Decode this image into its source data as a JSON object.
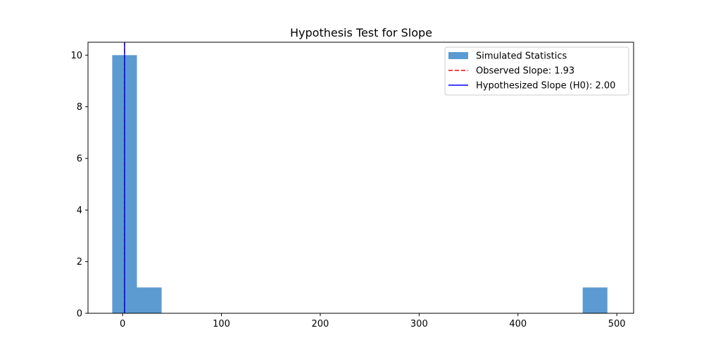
{
  "chart_data": {
    "type": "bar",
    "title": "Hypothesis Test for Slope",
    "xlabel": "",
    "ylabel": "",
    "xlim": [
      -35,
      517
    ],
    "ylim": [
      0,
      10.5
    ],
    "xticks": [
      0,
      100,
      200,
      300,
      400,
      500
    ],
    "yticks": [
      0,
      2,
      4,
      6,
      8,
      10
    ],
    "grid": false,
    "legend_position": "top-right",
    "histogram": {
      "name": "Simulated Statistics",
      "color": "#5b9bd1",
      "bins": [
        {
          "x0": -10.5,
          "x1": 14.5,
          "count": 10
        },
        {
          "x0": 14.5,
          "x1": 39.5,
          "count": 1
        },
        {
          "x0": 465.5,
          "x1": 490.5,
          "count": 1
        }
      ]
    },
    "reference_lines": [
      {
        "name": "Observed Slope: 1.93",
        "x": 1.93,
        "color": "#ff0000",
        "style": "dashed"
      },
      {
        "name": "Hypothesized Slope (H0): 2.00",
        "x": 2.0,
        "color": "#0000ff",
        "style": "solid"
      }
    ]
  }
}
